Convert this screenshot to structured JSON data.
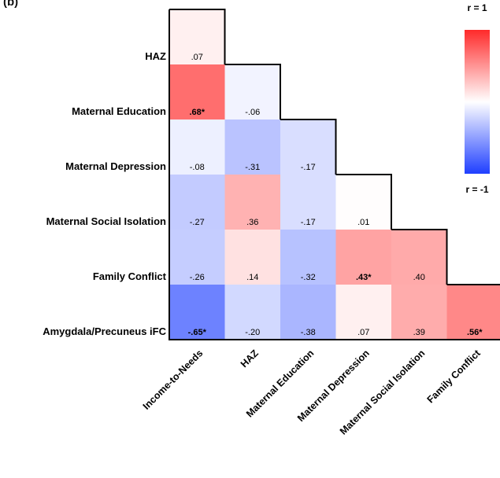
{
  "panel_label": "(b)",
  "chart_data": {
    "type": "heatmap",
    "title": "",
    "rows": [
      "HAZ",
      "Maternal Education",
      "Maternal Depression",
      "Maternal Social Isolation",
      "Family Conflict",
      "Amygdala/Precuneus iFC"
    ],
    "columns": [
      "Income-to-Needs",
      "HAZ",
      "Maternal Education",
      "Maternal Depression",
      "Maternal Social Isolation",
      "Family Conflict"
    ],
    "cells": [
      [
        {
          "value": 0.07,
          "label": ".07",
          "significant": false
        }
      ],
      [
        {
          "value": 0.68,
          "label": ".68*",
          "significant": true
        },
        {
          "value": -0.06,
          "label": "-.06",
          "significant": false
        }
      ],
      [
        {
          "value": -0.08,
          "label": "-.08",
          "significant": false
        },
        {
          "value": -0.31,
          "label": "-.31",
          "significant": false
        },
        {
          "value": -0.17,
          "label": "-.17",
          "significant": false
        }
      ],
      [
        {
          "value": -0.27,
          "label": "-.27",
          "significant": false
        },
        {
          "value": 0.36,
          "label": ".36",
          "significant": false
        },
        {
          "value": -0.17,
          "label": "-.17",
          "significant": false
        },
        {
          "value": 0.01,
          "label": ".01",
          "significant": false
        }
      ],
      [
        {
          "value": -0.26,
          "label": "-.26",
          "significant": false
        },
        {
          "value": 0.14,
          "label": ".14",
          "significant": false
        },
        {
          "value": -0.32,
          "label": "-.32",
          "significant": false
        },
        {
          "value": 0.43,
          "label": ".43*",
          "significant": true
        },
        {
          "value": 0.4,
          "label": ".40",
          "significant": false
        }
      ],
      [
        {
          "value": -0.65,
          "label": "-.65*",
          "significant": true
        },
        {
          "value": -0.2,
          "label": "-.20",
          "significant": false
        },
        {
          "value": -0.38,
          "label": "-.38",
          "significant": false
        },
        {
          "value": 0.07,
          "label": ".07",
          "significant": false
        },
        {
          "value": 0.39,
          "label": ".39",
          "significant": false
        },
        {
          "value": 0.56,
          "label": ".56*",
          "significant": true
        }
      ]
    ],
    "color_scale": {
      "min": -1,
      "max": 1,
      "min_label": "r = -1",
      "max_label": "r = 1",
      "min_color": "#1f3fff",
      "mid_color": "#ffffff",
      "max_color": "#ff2a2a"
    }
  }
}
